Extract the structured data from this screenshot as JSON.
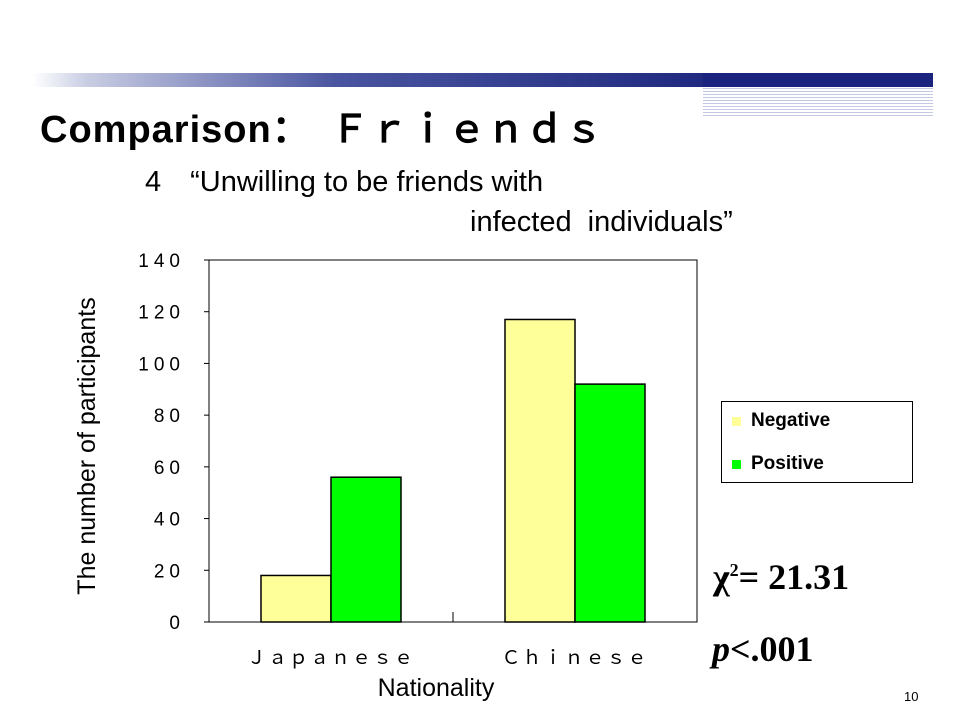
{
  "slide": {
    "title": "Comparison：　Ｆｒｉｅｎｄｓ",
    "subtitle_line1": "4　“Unwilling to be friends with",
    "subtitle_line2": "infected  individuals”",
    "page_number": "10",
    "chi_symbol": "χ",
    "chi_exp": "2",
    "chi_value": "= 21.31",
    "p_label": "p",
    "p_value": "<.001",
    "header_colors": {
      "bar_dark": "#1a237e",
      "bar_mid": "#4a55a0"
    }
  },
  "chart_data": {
    "type": "bar",
    "xlabel": "Nationality",
    "ylabel": "The number of participants",
    "ylim": [
      0,
      140
    ],
    "y_ticks": [
      "0",
      "20",
      "40",
      "60",
      "80",
      "100",
      "120",
      "140"
    ],
    "categories": [
      "Ｊａｐａｎｅｓｅ",
      "Ｃｈｉｎｅｓｅ"
    ],
    "series": [
      {
        "name": "Negative",
        "color": "#ffff99",
        "values": [
          18,
          117
        ]
      },
      {
        "name": "Positive",
        "color": "#00ff00",
        "values": [
          56,
          92
        ]
      }
    ],
    "legend_position": "right",
    "grid": false
  }
}
